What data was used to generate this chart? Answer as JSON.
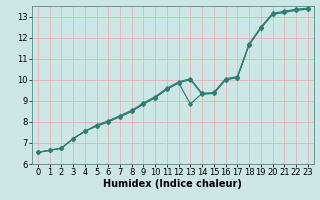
{
  "title": "",
  "xlabel": "Humidex (Indice chaleur)",
  "ylabel": "",
  "xlim": [
    -0.5,
    23.5
  ],
  "ylim": [
    6,
    13.5
  ],
  "xticks": [
    0,
    1,
    2,
    3,
    4,
    5,
    6,
    7,
    8,
    9,
    10,
    11,
    12,
    13,
    14,
    15,
    16,
    17,
    18,
    19,
    20,
    21,
    22,
    23
  ],
  "yticks": [
    6,
    7,
    8,
    9,
    10,
    11,
    12,
    13
  ],
  "bg_color": "#cce5e5",
  "grid_color": "#e8b0b0",
  "line_color": "#2d7d74",
  "line1_x": [
    0,
    1,
    2,
    3,
    4,
    5,
    6,
    7,
    8,
    9,
    10,
    11,
    12,
    13,
    14,
    15,
    16,
    17,
    18,
    19,
    20,
    21,
    22,
    23
  ],
  "line1_y": [
    6.55,
    6.65,
    6.75,
    7.2,
    7.55,
    7.8,
    8.0,
    8.25,
    8.5,
    8.85,
    9.15,
    9.55,
    9.85,
    10.0,
    9.3,
    9.35,
    10.0,
    10.1,
    11.65,
    12.45,
    13.1,
    13.2,
    13.3,
    13.35
  ],
  "line2_x": [
    0,
    1,
    2,
    3,
    4,
    5,
    6,
    7,
    8,
    9,
    10,
    11,
    12,
    13,
    14,
    15,
    16,
    17,
    18,
    19,
    20,
    21,
    22,
    23
  ],
  "line2_y": [
    6.55,
    6.65,
    6.75,
    7.2,
    7.55,
    7.8,
    8.0,
    8.25,
    8.5,
    8.85,
    9.15,
    9.55,
    9.85,
    8.85,
    9.35,
    9.35,
    10.0,
    10.1,
    11.65,
    12.45,
    13.1,
    13.2,
    13.3,
    13.35
  ],
  "line3_x": [
    0,
    1,
    2,
    3,
    4,
    5,
    6,
    7,
    8,
    9,
    10,
    11,
    12,
    13,
    14,
    15,
    16,
    17,
    18,
    19,
    20,
    21,
    22,
    23
  ],
  "line3_y": [
    6.55,
    6.65,
    6.75,
    7.2,
    7.55,
    7.85,
    8.05,
    8.3,
    8.55,
    8.9,
    9.2,
    9.6,
    9.9,
    10.05,
    9.35,
    9.4,
    10.05,
    10.15,
    11.7,
    12.5,
    13.15,
    13.25,
    13.35,
    13.4
  ],
  "fontsize_label": 7,
  "fontsize_tick": 6,
  "marker": "D",
  "markersize": 1.8,
  "linewidth": 0.8
}
